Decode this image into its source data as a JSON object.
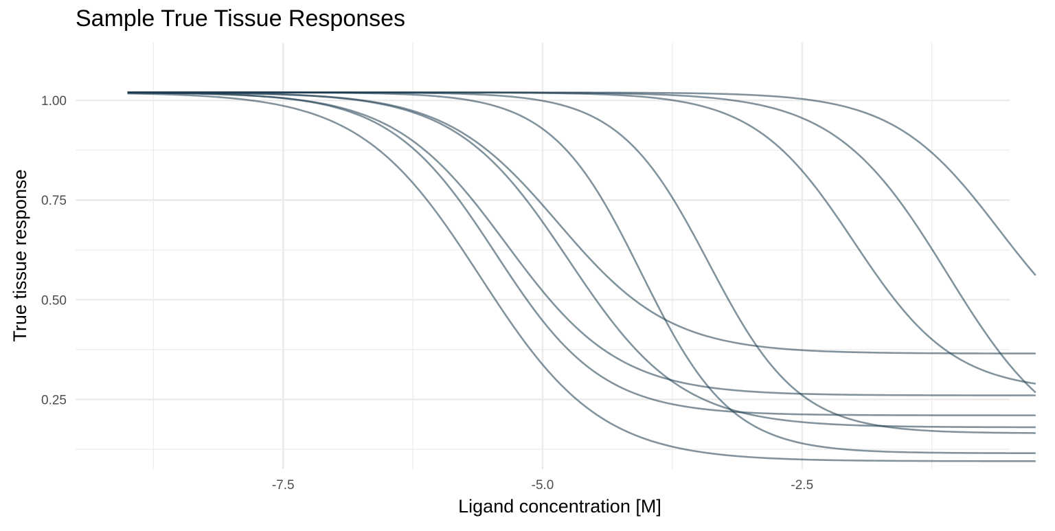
{
  "chart_data": {
    "type": "line",
    "title": "Sample True Tissue Responses",
    "xlabel": "Ligand concentration [M]",
    "ylabel": "True tissue response",
    "xlim": [
      -9.5,
      -0.5
    ],
    "ylim": [
      0.075,
      1.145
    ],
    "x_ticks": [
      -7.5,
      -5.0,
      -2.5
    ],
    "x_tick_labels": [
      "-7.5",
      "-5.0",
      "-2.5"
    ],
    "x_minor_ticks": [
      -8.75,
      -6.25,
      -3.75,
      -1.25
    ],
    "y_ticks": [
      0.25,
      0.5,
      0.75,
      1.0
    ],
    "y_tick_labels": [
      "0.25",
      "0.50",
      "0.75",
      "1.00"
    ],
    "y_minor_ticks": [
      0.125,
      0.375,
      0.625,
      0.875
    ],
    "x_range": [
      -9.0,
      -0.25
    ],
    "grid": true,
    "line_color": "#1b3a4e",
    "series": [
      {
        "top": 1.02,
        "bottom": 0.095,
        "ec50": -5.6,
        "hill": 0.75
      },
      {
        "top": 1.02,
        "bottom": 0.21,
        "ec50": -5.45,
        "hill": 0.85
      },
      {
        "top": 1.02,
        "bottom": 0.26,
        "ec50": -5.35,
        "hill": 0.8
      },
      {
        "top": 1.02,
        "bottom": 0.18,
        "ec50": -4.75,
        "hill": 0.8
      },
      {
        "top": 1.02,
        "bottom": 0.365,
        "ec50": -4.85,
        "hill": 0.8
      },
      {
        "top": 1.02,
        "bottom": 0.115,
        "ec50": -4.05,
        "hill": 1.0
      },
      {
        "top": 1.02,
        "bottom": 0.165,
        "ec50": -3.4,
        "hill": 1.0
      },
      {
        "top": 1.02,
        "bottom": 0.27,
        "ec50": -2.0,
        "hill": 0.9
      },
      {
        "top": 1.02,
        "bottom": 0.11,
        "ec50": -1.1,
        "hill": 0.8
      },
      {
        "top": 1.02,
        "bottom": 0.33,
        "ec50": -0.6,
        "hill": 0.85
      }
    ]
  }
}
